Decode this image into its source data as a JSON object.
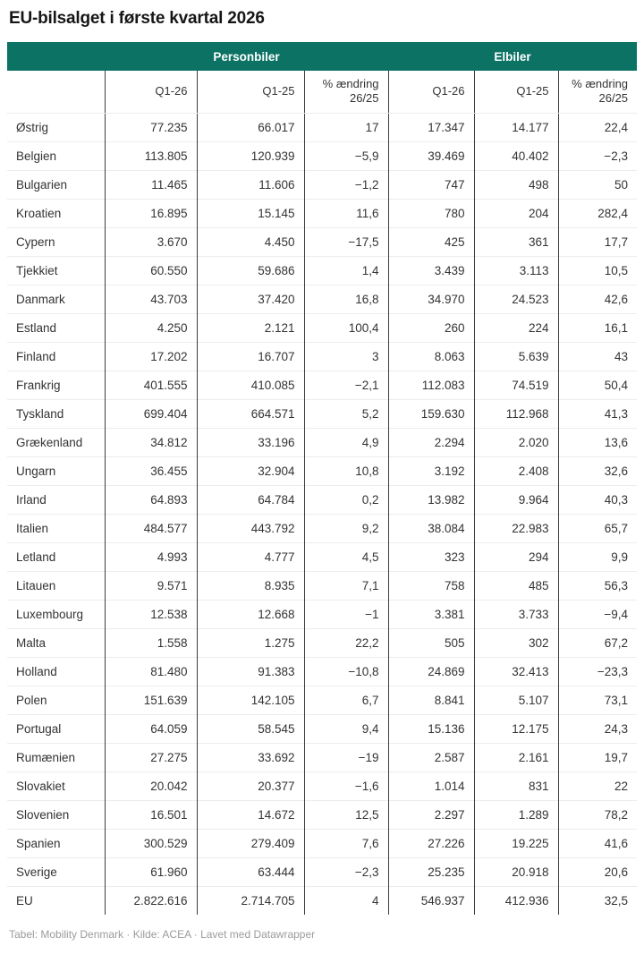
{
  "title": "EU-bilsalget i første kvartal 2026",
  "footer": {
    "text": "Tabel: Mobility Denmark · Kilde: ACEA · Lavet med Datawrapper"
  },
  "colors": {
    "header_bg": "#0b7264",
    "header_text": "#ffffff",
    "body_text": "#333333",
    "grid_vertical": "#3d3d3d",
    "grid_horizontal": "#ececec",
    "footer_text": "#9b9b9b"
  },
  "chart_data": {
    "type": "table",
    "title": "EU-bilsalget i første kvartal 2026",
    "group_headers": [
      {
        "label": "Personbiler",
        "colspan": 3
      },
      {
        "label": "Elbiler",
        "colspan": 3
      }
    ],
    "columns": [
      "",
      "Q1-26",
      "Q1-25",
      "% ændring\n26/25",
      "Q1-26",
      "Q1-25",
      "% ændring\n26/25"
    ],
    "rows": [
      {
        "country": "Østrig",
        "values": [
          "77.235",
          "66.017",
          "17",
          "17.347",
          "14.177",
          "22,4"
        ]
      },
      {
        "country": "Belgien",
        "values": [
          "113.805",
          "120.939",
          "−5,9",
          "39.469",
          "40.402",
          "−2,3"
        ]
      },
      {
        "country": "Bulgarien",
        "values": [
          "11.465",
          "11.606",
          "−1,2",
          "747",
          "498",
          "50"
        ]
      },
      {
        "country": "Kroatien",
        "values": [
          "16.895",
          "15.145",
          "11,6",
          "780",
          "204",
          "282,4"
        ]
      },
      {
        "country": "Cypern",
        "values": [
          "3.670",
          "4.450",
          "−17,5",
          "425",
          "361",
          "17,7"
        ]
      },
      {
        "country": "Tjekkiet",
        "values": [
          "60.550",
          "59.686",
          "1,4",
          "3.439",
          "3.113",
          "10,5"
        ]
      },
      {
        "country": "Danmark",
        "values": [
          "43.703",
          "37.420",
          "16,8",
          "34.970",
          "24.523",
          "42,6"
        ]
      },
      {
        "country": "Estland",
        "values": [
          "4.250",
          "2.121",
          "100,4",
          "260",
          "224",
          "16,1"
        ]
      },
      {
        "country": "Finland",
        "values": [
          "17.202",
          "16.707",
          "3",
          "8.063",
          "5.639",
          "43"
        ]
      },
      {
        "country": "Frankrig",
        "values": [
          "401.555",
          "410.085",
          "−2,1",
          "112.083",
          "74.519",
          "50,4"
        ]
      },
      {
        "country": "Tyskland",
        "values": [
          "699.404",
          "664.571",
          "5,2",
          "159.630",
          "112.968",
          "41,3"
        ]
      },
      {
        "country": "Grækenland",
        "values": [
          "34.812",
          "33.196",
          "4,9",
          "2.294",
          "2.020",
          "13,6"
        ]
      },
      {
        "country": "Ungarn",
        "values": [
          "36.455",
          "32.904",
          "10,8",
          "3.192",
          "2.408",
          "32,6"
        ]
      },
      {
        "country": "Irland",
        "values": [
          "64.893",
          "64.784",
          "0,2",
          "13.982",
          "9.964",
          "40,3"
        ]
      },
      {
        "country": "Italien",
        "values": [
          "484.577",
          "443.792",
          "9,2",
          "38.084",
          "22.983",
          "65,7"
        ]
      },
      {
        "country": "Letland",
        "values": [
          "4.993",
          "4.777",
          "4,5",
          "323",
          "294",
          "9,9"
        ]
      },
      {
        "country": "Litauen",
        "values": [
          "9.571",
          "8.935",
          "7,1",
          "758",
          "485",
          "56,3"
        ]
      },
      {
        "country": "Luxembourg",
        "values": [
          "12.538",
          "12.668",
          "−1",
          "3.381",
          "3.733",
          "−9,4"
        ]
      },
      {
        "country": "Malta",
        "values": [
          "1.558",
          "1.275",
          "22,2",
          "505",
          "302",
          "67,2"
        ]
      },
      {
        "country": "Holland",
        "values": [
          "81.480",
          "91.383",
          "−10,8",
          "24.869",
          "32.413",
          "−23,3"
        ]
      },
      {
        "country": "Polen",
        "values": [
          "151.639",
          "142.105",
          "6,7",
          "8.841",
          "5.107",
          "73,1"
        ]
      },
      {
        "country": "Portugal",
        "values": [
          "64.059",
          "58.545",
          "9,4",
          "15.136",
          "12.175",
          "24,3"
        ]
      },
      {
        "country": "Rumænien",
        "values": [
          "27.275",
          "33.692",
          "−19",
          "2.587",
          "2.161",
          "19,7"
        ]
      },
      {
        "country": "Slovakiet",
        "values": [
          "20.042",
          "20.377",
          "−1,6",
          "1.014",
          "831",
          "22"
        ]
      },
      {
        "country": "Slovenien",
        "values": [
          "16.501",
          "14.672",
          "12,5",
          "2.297",
          "1.289",
          "78,2"
        ]
      },
      {
        "country": "Spanien",
        "values": [
          "300.529",
          "279.409",
          "7,6",
          "27.226",
          "19.225",
          "41,6"
        ]
      },
      {
        "country": "Sverige",
        "values": [
          "61.960",
          "63.444",
          "−2,3",
          "25.235",
          "20.918",
          "20,6"
        ]
      },
      {
        "country": "EU",
        "values": [
          "2.822.616",
          "2.714.705",
          "4",
          "546.937",
          "412.936",
          "32,5"
        ]
      }
    ]
  }
}
